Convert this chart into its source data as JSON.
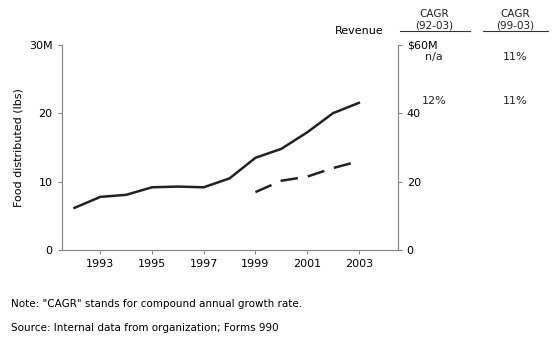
{
  "food_years": [
    1992,
    1993,
    1994,
    1995,
    1996,
    1997,
    1998,
    1999,
    2000,
    2001,
    2002,
    2003
  ],
  "food_values": [
    6.2,
    7.8,
    8.1,
    9.2,
    9.3,
    9.2,
    10.5,
    13.5,
    14.8,
    17.2,
    20.0,
    21.5
  ],
  "revenue_years": [
    1999,
    2000,
    2001,
    2002,
    2003
  ],
  "revenue_values": [
    17.0,
    20.3,
    21.5,
    24.0,
    26.0
  ],
  "left_ylim": [
    0,
    30
  ],
  "right_ylim": [
    0,
    60
  ],
  "left_yticks": [
    0,
    10,
    20,
    30
  ],
  "left_yticklabels": [
    "0",
    "10",
    "20",
    "30M"
  ],
  "right_yticks": [
    0,
    20,
    40,
    60
  ],
  "right_yticklabels": [
    "0",
    "20",
    "40",
    "$60M"
  ],
  "xticks": [
    1993,
    1995,
    1997,
    1999,
    2001,
    2003
  ],
  "xlim": [
    1991.5,
    2004.5
  ],
  "left_ylabel": "Food distributed (lbs)",
  "right_ylabel": "Revenue",
  "note1": "Note: \"CAGR\" stands for compound annual growth rate.",
  "note2": "Source: Internal data from organization; Forms 990",
  "cagr_row1_col1": "n/a",
  "cagr_row1_col2": "11%",
  "cagr_row2_col1": "12%",
  "cagr_row2_col2": "11%",
  "line_color": "#222222",
  "bg_color": "#ffffff"
}
